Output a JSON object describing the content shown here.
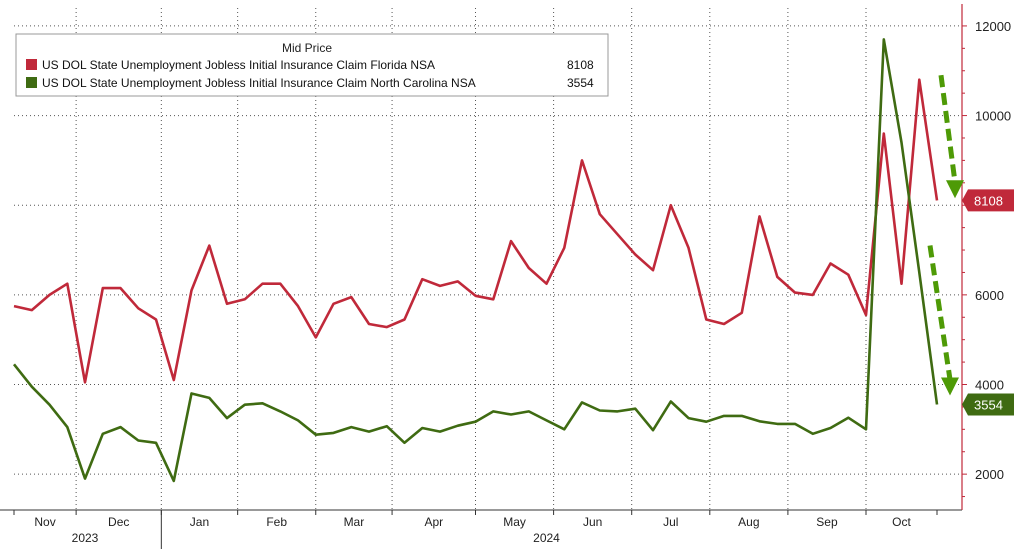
{
  "chart_data": {
    "type": "line",
    "legend_title": "Mid Price",
    "legend_position": "top-left",
    "y_axis_position": "right",
    "ylim": [
      1200,
      12400
    ],
    "yticks": [
      2000,
      4000,
      6000,
      8000,
      10000,
      12000
    ],
    "grid": true,
    "x_month_labels": [
      "Nov",
      "Dec",
      "Jan",
      "Feb",
      "Mar",
      "Apr",
      "May",
      "Jun",
      "Jul",
      "Aug",
      "Sep",
      "Oct"
    ],
    "x_year_labels": [
      "2023",
      "2024"
    ],
    "series": [
      {
        "name": "US DOL State Unemployment Jobless Initial Insurance Claim Florida NSA",
        "last_value_label": "8108",
        "color": "#c0293a",
        "values": [
          5750,
          5660,
          6000,
          6250,
          4050,
          6150,
          6150,
          5700,
          5450,
          4100,
          6100,
          7100,
          5800,
          5900,
          6250,
          6250,
          5750,
          5050,
          5800,
          5950,
          5350,
          5280,
          5450,
          6350,
          6200,
          6300,
          5980,
          5900,
          7200,
          6600,
          6250,
          7050,
          9000,
          7800,
          7350,
          6900,
          6550,
          8000,
          7050,
          5450,
          5350,
          5600,
          7750,
          6400,
          6050,
          6000,
          6700,
          6450,
          5550,
          9600,
          6250,
          10800,
          8108
        ]
      },
      {
        "name": "US DOL State Unemployment Jobless Initial Insurance Claim North Carolina NSA",
        "last_value_label": "3554",
        "color": "#3f6b12",
        "values": [
          4450,
          3950,
          3550,
          3050,
          1900,
          2900,
          3050,
          2750,
          2700,
          1850,
          3800,
          3700,
          3250,
          3550,
          3580,
          3400,
          3200,
          2880,
          2920,
          3050,
          2950,
          3070,
          2700,
          3030,
          2950,
          3080,
          3170,
          3400,
          3330,
          3400,
          3200,
          3000,
          3600,
          3420,
          3400,
          3460,
          2980,
          3620,
          3250,
          3170,
          3300,
          3300,
          3180,
          3120,
          3120,
          2900,
          3030,
          3260,
          3000,
          11700,
          9400,
          6500,
          3554
        ]
      }
    ],
    "annotations": [
      "green dashed down arrow near Florida line end",
      "green dashed down arrow near North Carolina line end"
    ]
  }
}
